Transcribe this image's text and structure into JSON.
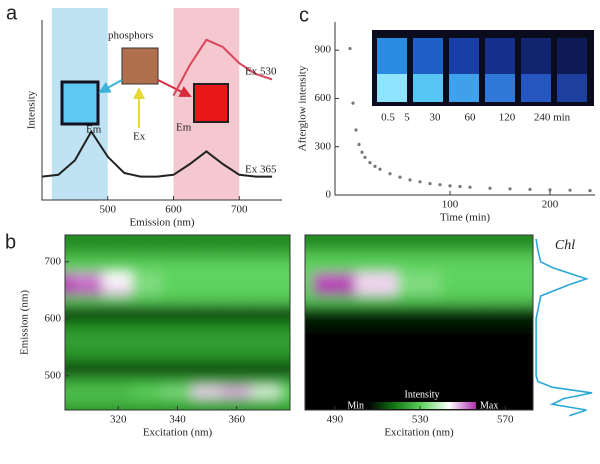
{
  "chart_data": [
    {
      "type": "line",
      "panel_label": "a",
      "xlabel": "Emission (nm)",
      "ylabel": "Intensity",
      "photo_label": "phosphors",
      "excitation_label": "Ex",
      "emission_labels": [
        "Em",
        "Em"
      ],
      "xlim": [
        400,
        765
      ],
      "ylim": [
        0,
        1
      ],
      "xticks": [
        500,
        600,
        700
      ],
      "shaded_regions": [
        {
          "range": [
            415,
            500
          ],
          "color": "#bfe3f2"
        },
        {
          "range": [
            600,
            700
          ],
          "color": "#f5c8cf"
        }
      ],
      "x": [
        400,
        425,
        450,
        475,
        500,
        525,
        550,
        575,
        600,
        625,
        650,
        675,
        700,
        725,
        750
      ],
      "series": [
        {
          "name": "Ex 365",
          "color": "#222222",
          "values": [
            0.13,
            0.14,
            0.22,
            0.38,
            0.24,
            0.15,
            0.13,
            0.13,
            0.14,
            0.2,
            0.27,
            0.2,
            0.14,
            0.13,
            0.13
          ]
        },
        {
          "name": "Ex 530",
          "color": "#d9465a",
          "values": [
            null,
            null,
            null,
            null,
            null,
            null,
            null,
            null,
            0.58,
            0.75,
            0.89,
            0.85,
            0.76,
            0.7,
            0.67
          ]
        }
      ]
    },
    {
      "type": "scatter",
      "panel_label": "c",
      "xlabel": "Time (min)",
      "ylabel": "Afterglow intensity",
      "inset_labels": [
        "0.5",
        "5",
        "30",
        "60",
        "120",
        "240 min"
      ],
      "xlim": [
        -15,
        245
      ],
      "ylim": [
        0,
        1075
      ],
      "xticks": [
        100,
        200
      ],
      "yticks": [
        0,
        300,
        600,
        900
      ],
      "color": "#777777",
      "x": [
        0,
        3,
        6,
        9,
        12,
        15,
        20,
        25,
        30,
        40,
        50,
        60,
        70,
        80,
        90,
        100,
        110,
        120,
        140,
        160,
        180,
        200,
        220,
        240
      ],
      "values": [
        910,
        571,
        404,
        314,
        266,
        234,
        201,
        178,
        160,
        132,
        111,
        94,
        82,
        71,
        64,
        57,
        53,
        48,
        42,
        38,
        35,
        32,
        30,
        27
      ]
    },
    {
      "type": "heatmap",
      "panel_label": "b",
      "xlabel": "Excitation (nm)",
      "ylabel": "Emission (nm)",
      "xlim": [
        302,
        378
      ],
      "ylim": [
        440,
        747
      ],
      "xticks": [
        320,
        340,
        360
      ],
      "yticks": [
        500,
        600,
        700
      ],
      "colormap": [
        "#000000",
        "#127a12",
        "#5fd35f",
        "#ffffff",
        "#b02fb0"
      ],
      "x": [
        300,
        310,
        320,
        330,
        340,
        350,
        360,
        370,
        380
      ],
      "y": [
        730,
        710,
        690,
        670,
        650,
        630,
        610,
        590,
        570,
        550,
        530,
        510,
        490,
        470,
        450,
        430
      ],
      "values": [
        [
          0.3,
          0.3,
          0.3,
          0.3,
          0.3,
          0.3,
          0.3,
          0.3,
          0.3
        ],
        [
          0.4,
          0.4,
          0.4,
          0.4,
          0.4,
          0.4,
          0.4,
          0.4,
          0.4
        ],
        [
          0.5,
          0.5,
          0.5,
          0.5,
          0.5,
          0.5,
          0.5,
          0.5,
          0.5
        ],
        [
          0.95,
          0.9,
          0.75,
          0.55,
          0.5,
          0.5,
          0.5,
          0.5,
          0.5
        ],
        [
          1,
          0.95,
          0.8,
          0.55,
          0.5,
          0.5,
          0.5,
          0.5,
          0.5
        ],
        [
          0.45,
          0.45,
          0.45,
          0.45,
          0.45,
          0.45,
          0.45,
          0.45,
          0.45
        ],
        [
          0.1,
          0.1,
          0.1,
          0.1,
          0.1,
          0.1,
          0.1,
          0.1,
          0.1
        ],
        [
          0.25,
          0.25,
          0.25,
          0.25,
          0.25,
          0.25,
          0.25,
          0.25,
          0.25
        ],
        [
          0.35,
          0.35,
          0.35,
          0.35,
          0.35,
          0.35,
          0.35,
          0.35,
          0.35
        ],
        [
          0.35,
          0.35,
          0.35,
          0.35,
          0.35,
          0.35,
          0.35,
          0.35,
          0.35
        ],
        [
          0.3,
          0.3,
          0.3,
          0.3,
          0.3,
          0.3,
          0.3,
          0.3,
          0.3
        ],
        [
          0.1,
          0.1,
          0.1,
          0.1,
          0.1,
          0.1,
          0.1,
          0.1,
          0.1
        ],
        [
          0.35,
          0.35,
          0.35,
          0.35,
          0.35,
          0.35,
          0.35,
          0.35,
          0.35
        ],
        [
          0.45,
          0.45,
          0.45,
          0.5,
          0.55,
          0.8,
          0.85,
          0.7,
          0.5
        ],
        [
          0.4,
          0.4,
          0.4,
          0.4,
          0.4,
          0.4,
          0.4,
          0.4,
          0.4
        ],
        [
          0.3,
          0.3,
          0.3,
          0.3,
          0.3,
          0.3,
          0.3,
          0.3,
          0.3
        ]
      ]
    },
    {
      "type": "heatmap",
      "xlabel": "Excitation (nm)",
      "colorbar": {
        "title": "Intensity",
        "min_label": "Min",
        "max_label": "Max"
      },
      "xlim": [
        476,
        583
      ],
      "ylim": [
        440,
        747
      ],
      "xticks": [
        490,
        530,
        570
      ],
      "colormap": [
        "#000000",
        "#127a12",
        "#5fd35f",
        "#ffffff",
        "#b02fb0"
      ],
      "x": [
        470,
        490,
        510,
        530,
        550,
        570,
        590
      ],
      "y": [
        730,
        710,
        690,
        670,
        650,
        630,
        610,
        590,
        570,
        550,
        530,
        510,
        490,
        470,
        450,
        430
      ],
      "values": [
        [
          0.3,
          0.3,
          0.3,
          0.3,
          0.3,
          0.3,
          0.3
        ],
        [
          0.45,
          0.45,
          0.45,
          0.45,
          0.45,
          0.45,
          0.45
        ],
        [
          0.5,
          0.5,
          0.5,
          0.5,
          0.5,
          0.5,
          0.5
        ],
        [
          0.5,
          0.95,
          0.8,
          0.55,
          0.5,
          0.5,
          0.5
        ],
        [
          0.5,
          1,
          0.8,
          0.55,
          0.5,
          0.5,
          0.5
        ],
        [
          0.45,
          0.45,
          0.45,
          0.45,
          0.45,
          0.45,
          0.45
        ],
        [
          0.1,
          0.1,
          0.1,
          0.1,
          0.1,
          0.1,
          0.1
        ],
        [
          0.05,
          0.05,
          0.05,
          0.05,
          0.05,
          0.05,
          0.05
        ],
        [
          0,
          0,
          0,
          0,
          0,
          0,
          0
        ],
        [
          0,
          0,
          0,
          0,
          0,
          0,
          0
        ],
        [
          0,
          0,
          0,
          0,
          0,
          0,
          0
        ],
        [
          0,
          0,
          0,
          0,
          0,
          0,
          0
        ],
        [
          0,
          0,
          0,
          0,
          0,
          0,
          0
        ],
        [
          0,
          0,
          0,
          0,
          0,
          0,
          0
        ],
        [
          0,
          0,
          0,
          0,
          0,
          0,
          0
        ],
        [
          0,
          0,
          0,
          0,
          0,
          0,
          0
        ]
      ]
    },
    {
      "type": "line",
      "orientation": "vertical",
      "title": "Chl",
      "xlim": [
        440,
        747
      ],
      "ylim": [
        0,
        1.05
      ],
      "x": [
        430,
        440,
        450,
        460,
        470,
        480,
        490,
        500,
        550,
        600,
        640,
        660,
        670,
        680,
        690,
        700,
        720,
        740
      ],
      "series": [
        {
          "color": "#29a8d8",
          "values": [
            0.6,
            0.9,
            0.3,
            0.5,
            1,
            0.3,
            0.05,
            0.02,
            0.02,
            0.02,
            0.1,
            0.6,
            0.9,
            0.6,
            0.3,
            0.1,
            0.05,
            0.02
          ]
        }
      ]
    }
  ]
}
